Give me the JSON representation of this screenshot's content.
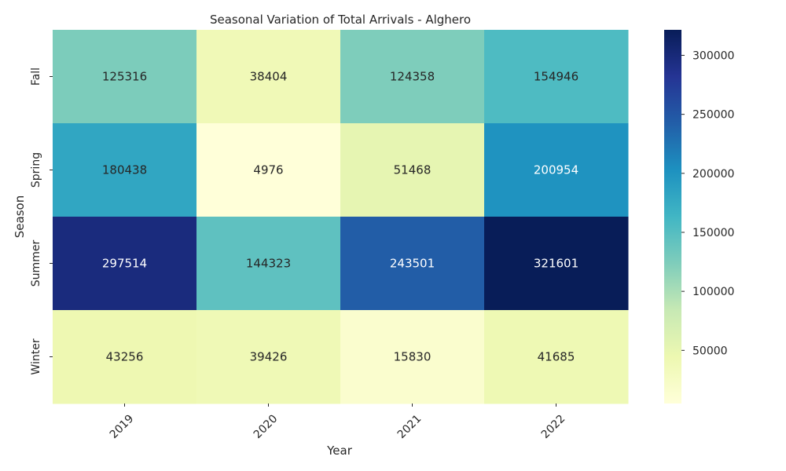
{
  "chart_data": {
    "type": "heatmap",
    "title": "Seasonal Variation of Total Arrivals - Alghero",
    "xlabel": "Year",
    "ylabel": "Season",
    "x_categories": [
      "2019",
      "2020",
      "2021",
      "2022"
    ],
    "y_categories": [
      "Fall",
      "Spring",
      "Summer",
      "Winter"
    ],
    "values": [
      [
        125316,
        38404,
        124358,
        154946
      ],
      [
        180438,
        4976,
        51468,
        200954
      ],
      [
        297514,
        144323,
        243501,
        321601
      ],
      [
        43256,
        39426,
        15830,
        41685
      ]
    ],
    "colormap": "YlGnBu",
    "colorbar": {
      "range": [
        4976,
        321601
      ],
      "ticks": [
        "50000",
        "100000",
        "150000",
        "200000",
        "250000",
        "300000"
      ]
    },
    "grid": false
  }
}
